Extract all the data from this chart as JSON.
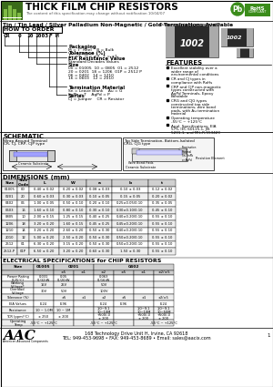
{
  "title": "THICK FILM CHIP RESISTORS",
  "subtitle": "The content of this specification may change without notification 10/04/07",
  "tagline": "Tin / Tin Lead / Silver Palladium Non-Magnetic / Gold Terminations Available",
  "custom": "Custom solutions are available",
  "how_to_order_label": "HOW TO ORDER",
  "packaging_label": "Packaging",
  "packaging_lines": [
    "M = 7\" Reel    B = Bulk",
    "V = 13\" Reel"
  ],
  "tolerance_label": "Tolerance (%)",
  "tolerance_values": "J = ±5   G = ±2   F = ±1",
  "eia_label": "EIA Resistance Value",
  "eia_sub": "Standard Decades Values",
  "size_label": "Size",
  "size_lines": [
    "00 = 01005   10 = 0805   01 = 2512",
    "20 = 0201   18 = 1206   01P = 2512 P",
    "06 = 0402   14 = 1210",
    "16 = 0603   12 = 2010"
  ],
  "term_label": "Termination Material",
  "term_lines": [
    "Sn = Leace Blank    Au = G",
    "SnPb = T    AgPd = P"
  ],
  "series_label": "Series",
  "series_lines": [
    "CJ = Jumper    CR = Resistor"
  ],
  "features_label": "FEATURES",
  "features": [
    "Excellent stability over a wider range of environmental conditions",
    "CR and CJ types in compliance with RoHs",
    "CRP and CJP non-magnetic types constructed with AgPd Terminals, Epoxy Bondable",
    "CRG and CJG types constructed top side terminations, wire bond pads, with Au termination material",
    "Operating temperature -55°C ~ +125°C",
    "Appl. Specifications: EIA 575, IEC 60115-1, JIS 5201-1, and MIL-R-55342C"
  ],
  "schematic_label": "SCHEMATIC",
  "dims_label": "DIMENSIONS (mm)",
  "dims_headers": [
    "Size",
    "Size Code",
    "L",
    "W",
    "a",
    "b",
    "t"
  ],
  "dims_data": [
    [
      "01005",
      "00",
      "0.40 ± 0.02",
      "0.20 ± 0.02",
      "0.08 ± 0.03",
      "0.10 ± 0.03",
      "0.12 ± 0.02"
    ],
    [
      "0201",
      "20",
      "0.60 ± 0.03",
      "0.30 ± 0.03",
      "0.10 ± 0.05",
      "0.15 ± 0.05",
      "0.20 ± 0.02"
    ],
    [
      "0402",
      "06",
      "1.00 ± 0.05",
      "0.50 ± 0.10",
      "0.20 ± 0.10",
      "0.25±0.05/0.10",
      "0.35 ± 0.05"
    ],
    [
      "0603",
      "16",
      "1.60 ± 0.10",
      "0.80 ± 0.10",
      "0.30 ± 0.10",
      "0.30±0.10/0.10",
      "0.45 ± 0.10"
    ],
    [
      "0805",
      "10",
      "2.00 ± 0.15",
      "1.25 ± 0.15",
      "0.40 ± 0.25",
      "0.40±0.20/0.10",
      "0.55 ± 0.10"
    ],
    [
      "1206",
      "18",
      "3.20 ± 0.20",
      "1.60 ± 0.15",
      "0.45 ± 0.25",
      "0.45±0.20/0.10",
      "0.55 ± 0.10"
    ],
    [
      "1210",
      "14",
      "3.20 ± 0.20",
      "2.60 ± 0.20",
      "0.50 ± 0.30",
      "0.40±0.20/0.10",
      "0.55 ± 0.10"
    ],
    [
      "2010",
      "12",
      "5.00 ± 0.20",
      "2.50 ± 0.20",
      "0.50 ± 0.30",
      "0.50±0.20/0.10",
      "0.55 ± 0.10"
    ],
    [
      "2512",
      "01",
      "6.30 ± 0.20",
      "3.15 ± 0.20",
      "0.50 ± 0.30",
      "0.50±0.20/0.10",
      "0.55 ± 0.10"
    ],
    [
      "2512-P",
      "01P",
      "6.50 ± 0.20",
      "3.20 ± 0.20",
      "0.60 ± 0.30",
      "1.50 ± 0.30",
      "0.55 ± 0.10"
    ]
  ],
  "elec_label": "ELECTRICAL SPECIFICATIONS for CHIP RESISTORS",
  "elec_col_headers": [
    "Size",
    "01005",
    "0201",
    "0402",
    ""
  ],
  "elec_sub_headers_0201": [
    "",
    "±5",
    "±2",
    "±5",
    "±1",
    "±2",
    "±5"
  ],
  "elec_rows": [
    [
      "Power Rating (125°C)",
      "0.031 (1/32) W",
      "0.05 (1/20) W",
      "0.063 (1/16) W"
    ],
    [
      "Working Voltage*",
      "15V",
      "25V",
      "50V"
    ],
    [
      "Overload Voltage",
      "30V",
      "50V",
      "100V"
    ],
    [
      "Tolerance (%)",
      "±5",
      "±1",
      "±2",
      "±5",
      "±1",
      "±2",
      "±5"
    ],
    [
      "EIA Values",
      "E-24",
      "E-96",
      "E-24",
      "E-96",
      "E-24"
    ],
    [
      "Resistance",
      "10 ~ 1.0M",
      "10 ~ 1M",
      "1.0~9.1, 10~10M",
      "1.0~9.1, 10~10M",
      "1.0~9.1, 10~50M"
    ],
    [
      "TCR (ppm/°C)",
      "± 250",
      "± 200",
      "+500/-0, ± 200",
      "+500/-0, ± 200",
      "+500/-0, ± 200"
    ],
    [
      "Operating Temp",
      "-55°C ~ +125°C",
      "",
      "-55°C ~ +125°C",
      "",
      "-55°C ~ +125°C"
    ]
  ],
  "footer_addr": "168 Technology Drive Unit H, Irvine, CA 92618",
  "footer_contact": "TEL: 949-453-9698 • FAX: 949-453-8689 • Email: sales@aacix.com",
  "bg_color": "#ffffff",
  "gray_header": "#d0d0d0",
  "light_gray_row": "#eeeeee"
}
